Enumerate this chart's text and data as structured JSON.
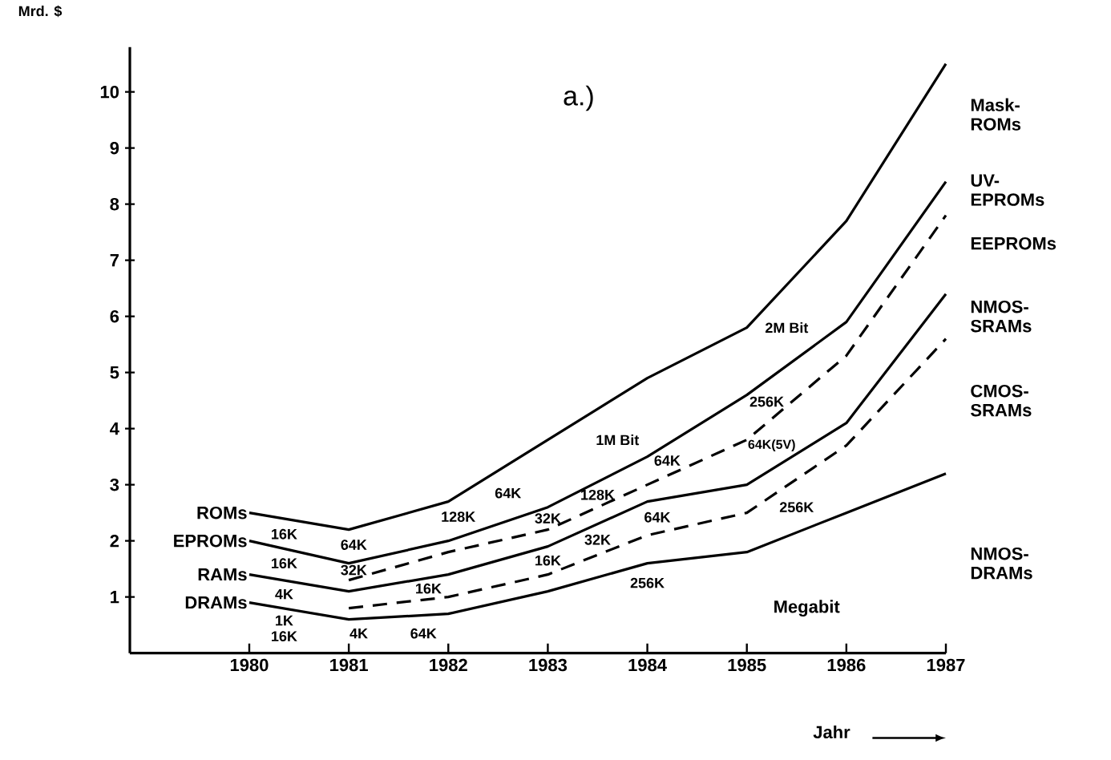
{
  "chart_data": {
    "type": "line",
    "title": "a.)",
    "xlabel": "Jahr",
    "ylabel": "Mrd. $",
    "x": [
      1980,
      1981,
      1982,
      1983,
      1984,
      1985,
      1986,
      1987
    ],
    "series": [
      {
        "name": "ROMs",
        "color": "#000000",
        "line_style": "solid",
        "values": [
          2.5,
          2.2,
          2.7,
          3.8,
          4.9,
          5.8,
          7.7,
          10.5
        ]
      },
      {
        "name": "EPROMs",
        "color": "#000000",
        "line_style": "solid",
        "values": [
          2.0,
          1.6,
          2.0,
          2.6,
          3.5,
          4.6,
          5.9,
          8.4
        ]
      },
      {
        "color": "#000000",
        "line_style": "dashed",
        "values": [
          null,
          1.3,
          1.8,
          2.2,
          3.0,
          3.8,
          5.3,
          7.8
        ]
      },
      {
        "name": "RAMs",
        "color": "#000000",
        "line_style": "solid",
        "values": [
          1.4,
          1.1,
          1.4,
          1.9,
          2.7,
          3.0,
          4.1,
          6.4
        ]
      },
      {
        "color": "#000000",
        "line_style": "dashed",
        "values": [
          null,
          0.8,
          1.0,
          1.4,
          2.1,
          2.5,
          3.7,
          5.6
        ]
      },
      {
        "name": "DRAMs",
        "color": "#000000",
        "line_style": "solid",
        "values": [
          0.9,
          0.6,
          0.7,
          1.1,
          1.6,
          1.8,
          2.5,
          3.2
        ]
      }
    ],
    "xlim": [
      1978.8,
      1987
    ],
    "ylim": [
      0,
      10.8
    ],
    "xticks": [
      1980,
      1981,
      1982,
      1983,
      1984,
      1985,
      1986,
      1987
    ],
    "yticks": [
      1,
      2,
      3,
      4,
      5,
      6,
      7,
      8,
      9,
      10
    ],
    "grid": false,
    "legend": "left",
    "marker": "none",
    "annotations": [
      "16K",
      "16K",
      "4K",
      "1K",
      "16K",
      "64K",
      "32K",
      "4K",
      "16K",
      "64K",
      "128K",
      "64K",
      "32K",
      "128K",
      "16K",
      "32K",
      "64K",
      "64K",
      "256K",
      "1M Bit",
      "2M Bit",
      "256K",
      "64K(5V)",
      "256K",
      "Megabit",
      "Mask-ROMs",
      "UV-EPROMs",
      "EEPROMs",
      "NMOS-SRAMs",
      "CMOS-SRAMs",
      "NMOS-DRAMs"
    ]
  }
}
